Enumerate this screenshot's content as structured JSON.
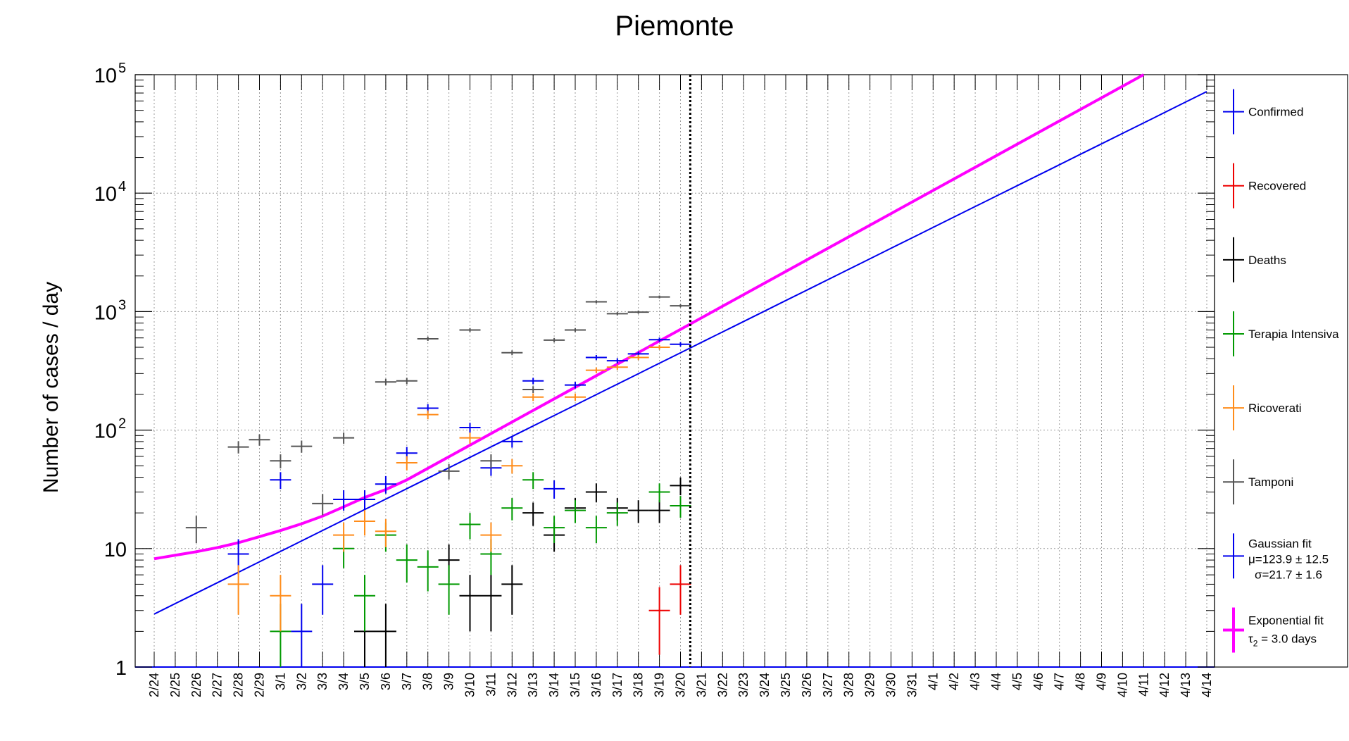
{
  "chart_data": {
    "type": "scatter",
    "title": "Piemonte",
    "ylabel": "Number of cases / day",
    "xlabel": "",
    "y_scale": "log",
    "ylim": [
      1,
      100000
    ],
    "y_ticks": [
      {
        "value": 1,
        "base": "1",
        "exp": ""
      },
      {
        "value": 10,
        "base": "10",
        "exp": ""
      },
      {
        "value": 100,
        "base": "10",
        "exp": "2"
      },
      {
        "value": 1000,
        "base": "10",
        "exp": "3"
      },
      {
        "value": 10000,
        "base": "10",
        "exp": "4"
      },
      {
        "value": 100000,
        "base": "10",
        "exp": "5"
      }
    ],
    "categories": [
      "2/24",
      "2/25",
      "2/26",
      "2/27",
      "2/28",
      "2/29",
      "3/1",
      "3/2",
      "3/3",
      "3/4",
      "3/5",
      "3/6",
      "3/7",
      "3/8",
      "3/9",
      "3/10",
      "3/11",
      "3/12",
      "3/13",
      "3/14",
      "3/15",
      "3/16",
      "3/17",
      "3/18",
      "3/19",
      "3/20",
      "3/21",
      "3/22",
      "3/23",
      "3/24",
      "3/25",
      "3/26",
      "3/27",
      "3/28",
      "3/29",
      "3/30",
      "3/31",
      "4/1",
      "4/2",
      "4/3",
      "4/4",
      "4/5",
      "4/6",
      "4/7",
      "4/8",
      "4/9",
      "4/10",
      "4/11",
      "4/12",
      "4/13",
      "4/14"
    ],
    "grid": true,
    "vline_at": "3/21",
    "legend_position": "right",
    "series": [
      {
        "name": "Confirmed",
        "color": "#0000ee",
        "points": [
          [
            "2/28",
            9
          ],
          [
            "3/1",
            38
          ],
          [
            "3/2",
            2
          ],
          [
            "3/3",
            5
          ],
          [
            "3/4",
            26
          ],
          [
            "3/5",
            26
          ],
          [
            "3/6",
            35
          ],
          [
            "3/7",
            64
          ],
          [
            "3/8",
            153
          ],
          [
            "3/10",
            105
          ],
          [
            "3/11",
            48
          ],
          [
            "3/12",
            80
          ],
          [
            "3/13",
            260
          ],
          [
            "3/14",
            32
          ],
          [
            "3/15",
            240
          ],
          [
            "3/16",
            410
          ],
          [
            "3/17",
            385
          ],
          [
            "3/18",
            440
          ],
          [
            "3/19",
            580
          ],
          [
            "3/20",
            530
          ]
        ]
      },
      {
        "name": "Recovered",
        "color": "#ee0000",
        "points": [
          [
            "3/19",
            3
          ],
          [
            "3/20",
            5
          ]
        ]
      },
      {
        "name": "Deaths",
        "color": "#000000",
        "points": [
          [
            "3/5",
            2
          ],
          [
            "3/6",
            2
          ],
          [
            "3/9",
            8
          ],
          [
            "3/10",
            4
          ],
          [
            "3/11",
            4
          ],
          [
            "3/12",
            5
          ],
          [
            "3/13",
            20
          ],
          [
            "3/14",
            13
          ],
          [
            "3/15",
            22
          ],
          [
            "3/16",
            30
          ],
          [
            "3/17",
            22
          ],
          [
            "3/18",
            21
          ],
          [
            "3/19",
            21
          ],
          [
            "3/20",
            34
          ]
        ]
      },
      {
        "name": "Terapia Intensiva",
        "color": "#009900",
        "points": [
          [
            "3/1",
            2
          ],
          [
            "3/4",
            10
          ],
          [
            "3/5",
            4
          ],
          [
            "3/6",
            13
          ],
          [
            "3/7",
            8
          ],
          [
            "3/8",
            7
          ],
          [
            "3/9",
            5
          ],
          [
            "3/10",
            16
          ],
          [
            "3/11",
            9
          ],
          [
            "3/12",
            22
          ],
          [
            "3/13",
            38
          ],
          [
            "3/14",
            15
          ],
          [
            "3/15",
            21
          ],
          [
            "3/16",
            15
          ],
          [
            "3/17",
            20
          ],
          [
            "3/19",
            30
          ],
          [
            "3/20",
            23
          ]
        ]
      },
      {
        "name": "Ricoverati",
        "color": "#ff8c1a",
        "points": [
          [
            "2/28",
            5
          ],
          [
            "3/1",
            4
          ],
          [
            "3/4",
            13
          ],
          [
            "3/5",
            17
          ],
          [
            "3/6",
            14
          ],
          [
            "3/7",
            53
          ],
          [
            "3/8",
            135
          ],
          [
            "3/10",
            86
          ],
          [
            "3/11",
            13
          ],
          [
            "3/12",
            50
          ],
          [
            "3/13",
            190
          ],
          [
            "3/15",
            190
          ],
          [
            "3/16",
            320
          ],
          [
            "3/17",
            340
          ],
          [
            "3/18",
            410
          ],
          [
            "3/19",
            500
          ]
        ]
      },
      {
        "name": "Tamponi",
        "color": "#555555",
        "points": [
          [
            "2/26",
            15
          ],
          [
            "2/28",
            72
          ],
          [
            "2/29",
            83
          ],
          [
            "3/1",
            55
          ],
          [
            "3/2",
            73
          ],
          [
            "3/3",
            24
          ],
          [
            "3/4",
            86
          ],
          [
            "3/6",
            255
          ],
          [
            "3/7",
            260
          ],
          [
            "3/8",
            590
          ],
          [
            "3/9",
            45
          ],
          [
            "3/10",
            700
          ],
          [
            "3/11",
            55
          ],
          [
            "3/12",
            450
          ],
          [
            "3/13",
            220
          ],
          [
            "3/14",
            575
          ],
          [
            "3/15",
            700
          ],
          [
            "3/16",
            1210
          ],
          [
            "3/17",
            960
          ],
          [
            "3/18",
            990
          ],
          [
            "3/19",
            1330
          ],
          [
            "3/20",
            1120
          ]
        ]
      }
    ],
    "fits": [
      {
        "name": "Gaussian fit",
        "label_lines": [
          "Gaussian fit",
          "μ=123.9 ± 12.5",
          "σ=21.7 ± 1.6"
        ],
        "color": "#0000ee",
        "from": "2/24",
        "to": "4/14",
        "y_start": 2.8,
        "y_end": 72000
      },
      {
        "name": "Exponential fit",
        "label_lines": [
          "Exponential fit",
          "τ",
          "2",
          " = 3.0 days"
        ],
        "color": "#ff00ff",
        "from": "2/24",
        "to": "4/11",
        "y_start": 8.2,
        "y_end": 100000,
        "early_points": [
          [
            "2/24",
            8.2
          ],
          [
            "2/26",
            9.4
          ],
          [
            "2/27",
            10.2
          ],
          [
            "2/28",
            11.2
          ],
          [
            "2/29",
            12.6
          ],
          [
            "3/1",
            14.2
          ],
          [
            "3/2",
            16.2
          ],
          [
            "3/3",
            18.8
          ],
          [
            "3/4",
            22.5
          ],
          [
            "3/5",
            27
          ],
          [
            "3/6",
            31.5
          ],
          [
            "3/7",
            38
          ]
        ],
        "tau2_days": 3.0
      }
    ]
  }
}
